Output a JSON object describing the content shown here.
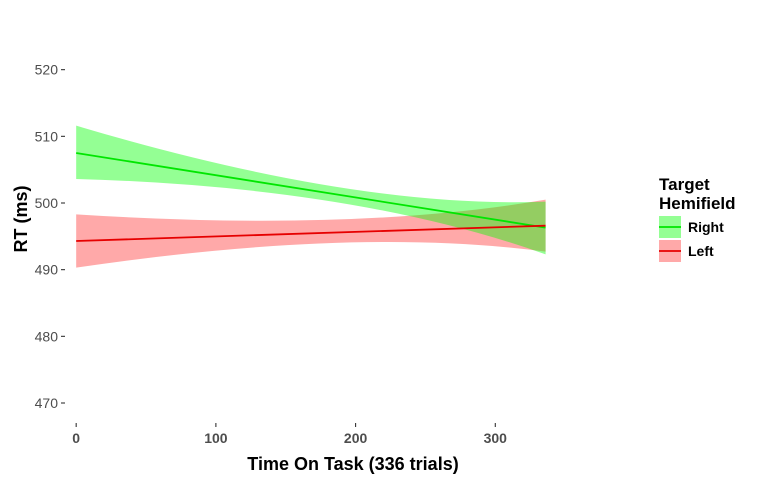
{
  "chart_data": {
    "type": "line",
    "xlabel": "Time On Task (336 trials)",
    "ylabel": "RT (ms)",
    "xlim": [
      -8,
      400
    ],
    "ylim": [
      467,
      524
    ],
    "x_ticks": [
      0,
      100,
      200,
      300
    ],
    "y_ticks": [
      470,
      480,
      490,
      500,
      510,
      520
    ],
    "grid": false,
    "legend": {
      "title_line1": "Target",
      "title_line2": "Hemifield",
      "placement": "right"
    },
    "series": [
      {
        "name": "Right",
        "color": "#00e600",
        "fill": "#00ff00",
        "x": [
          0,
          336
        ],
        "y": [
          507.5,
          496.3
        ],
        "ci_upper": [
          511.6,
          500.2
        ],
        "ci_lower": [
          503.6,
          492.3
        ],
        "ci_mid": {
          "x": 200,
          "upper": 502.5,
          "lower": 500.2
        }
      },
      {
        "name": "Left",
        "color": "#e60000",
        "fill": "#ff3333",
        "x": [
          0,
          336
        ],
        "y": [
          494.3,
          496.6
        ],
        "ci_upper": [
          498.3,
          500.5
        ],
        "ci_lower": [
          490.3,
          492.7
        ],
        "ci_mid": {
          "x": 200,
          "upper": 497.5,
          "lower": 494.0
        }
      }
    ]
  }
}
